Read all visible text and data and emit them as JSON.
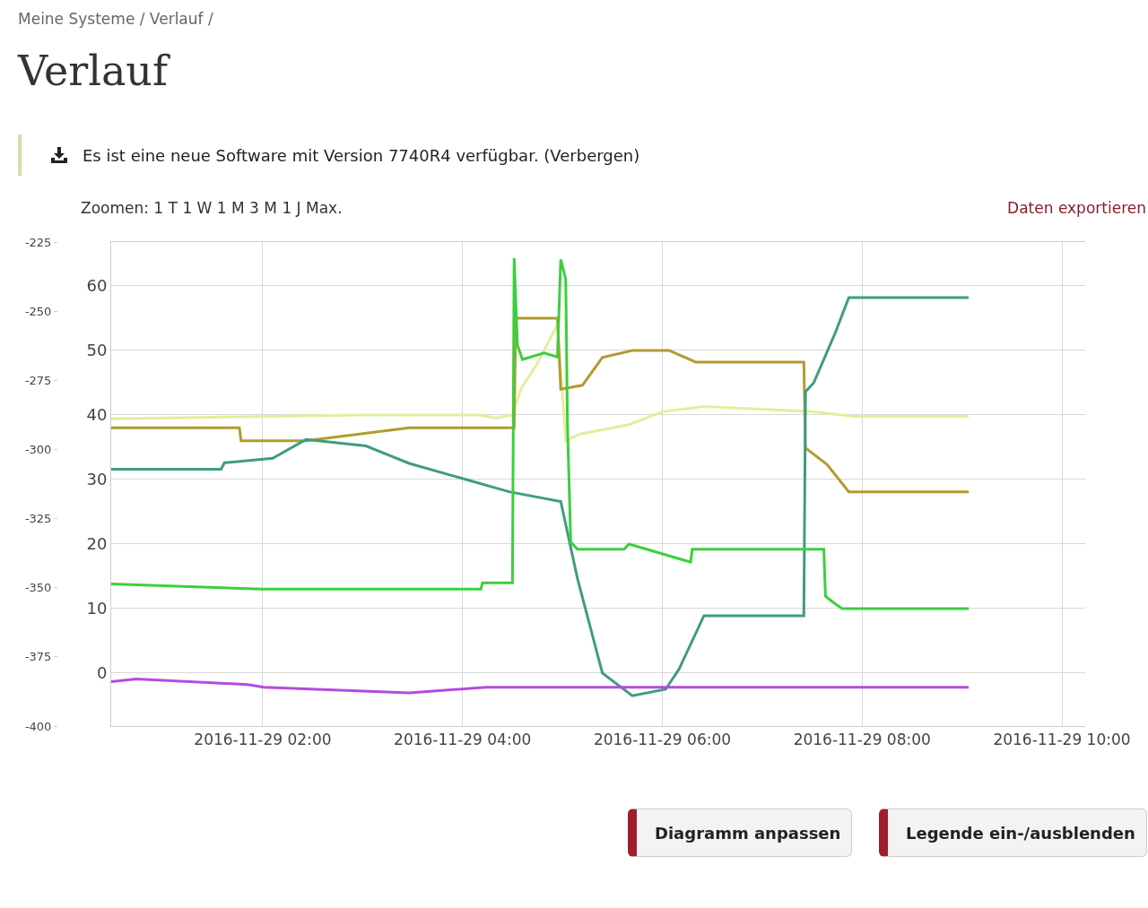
{
  "chart_data": {
    "type": "line",
    "title": "Verlauf",
    "subtitle": "Meine Systeme / Verlauf /",
    "annotations": [
      "Es ist eine neue Software mit Version 7740R4 verfügbar. (Verbergen)",
      "Zoomen: 1 T 1 W 1 M 3 M 1 J Max.",
      "Daten exportieren",
      "Diagramm anpassen",
      "Legende ein-/ausblenden"
    ],
    "xlim": [
      "2016-11-29T00:29",
      "2016-11-29T10:14"
    ],
    "xticks": [
      {
        "value": "2016-11-29T02:00",
        "label": "2016-11-29 02:00"
      },
      {
        "value": "2016-11-29T04:00",
        "label": "2016-11-29 04:00"
      },
      {
        "value": "2016-11-29T06:00",
        "label": "2016-11-29 06:00"
      },
      {
        "value": "2016-11-29T08:00",
        "label": "2016-11-29 08:00"
      },
      {
        "value": "2016-11-29T10:00",
        "label": "2016-11-29 10:00"
      }
    ],
    "ylim": [
      -8.2,
      66.8
    ],
    "yticks": [
      0,
      10,
      20,
      30,
      40,
      50,
      60
    ],
    "y2lim": [
      -400,
      -225
    ],
    "y2ticks": [
      -400,
      -375,
      -350,
      -325,
      -300,
      -275,
      -250,
      -225
    ],
    "grid": true,
    "marker": "none",
    "line_style": "solid",
    "series": [
      {
        "color": "#e3ee9e",
        "x": [
          "2016-11-29T00:29",
          "2016-11-29T03:00",
          "2016-11-29T04:10",
          "2016-11-29T04:20",
          "2016-11-29T04:30",
          "2016-11-29T04:35",
          "2016-11-29T04:45",
          "2016-11-29T04:57",
          "2016-11-29T05:02",
          "2016-11-29T05:10",
          "2016-11-29T05:40",
          "2016-11-29T06:00",
          "2016-11-29T06:25",
          "2016-11-29T07:30",
          "2016-11-29T07:55",
          "2016-11-29T09:04"
        ],
        "values": [
          39.4,
          40,
          40,
          39.5,
          40,
          44,
          48,
          54,
          36,
          37,
          38.5,
          40.5,
          41.3,
          40.5,
          39.8,
          39.8
        ]
      },
      {
        "color": "#b39a2e",
        "x": [
          "2016-11-29T00:29",
          "2016-11-29T01:46",
          "2016-11-29T01:47",
          "2016-11-29T02:26",
          "2016-11-29T03:28",
          "2016-11-29T04:31",
          "2016-11-29T04:32",
          "2016-11-29T04:57",
          "2016-11-29T04:59",
          "2016-11-29T05:12",
          "2016-11-29T05:24",
          "2016-11-29T05:42",
          "2016-11-29T06:04",
          "2016-11-29T06:20",
          "2016-11-29T07:25",
          "2016-11-29T07:26",
          "2016-11-29T07:39",
          "2016-11-29T07:52",
          "2016-11-29T09:04"
        ],
        "values": [
          38,
          38,
          36,
          36,
          38,
          38,
          55,
          55,
          44,
          44.6,
          48.9,
          50,
          50,
          48.2,
          48.2,
          34.9,
          32.3,
          28.1,
          28.1
        ]
      },
      {
        "color": "#3f9b85",
        "x": [
          "2016-11-29T00:29",
          "2016-11-29T01:35",
          "2016-11-29T01:37",
          "2016-11-29T02:06",
          "2016-11-29T02:26",
          "2016-11-29T03:02",
          "2016-11-29T03:28",
          "2016-11-29T04:28",
          "2016-11-29T04:59",
          "2016-11-29T05:09",
          "2016-11-29T05:24",
          "2016-11-29T05:42",
          "2016-11-29T06:02",
          "2016-11-29T06:10",
          "2016-11-29T06:25",
          "2016-11-29T07:25",
          "2016-11-29T07:26",
          "2016-11-29T07:31",
          "2016-11-29T07:44",
          "2016-11-29T07:52",
          "2016-11-29T09:04"
        ],
        "values": [
          31.6,
          31.6,
          32.6,
          33.3,
          36.2,
          35.2,
          32.5,
          28.1,
          26.6,
          14.7,
          0,
          -3.5,
          -2.5,
          0.6,
          8.9,
          8.9,
          43.6,
          45,
          52.8,
          58.2,
          58.2
        ]
      },
      {
        "color": "#3ccf3c",
        "x": [
          "2016-11-29T00:29",
          "2016-11-29T02:00",
          "2016-11-29T04:11",
          "2016-11-29T04:12",
          "2016-11-29T04:30",
          "2016-11-29T04:31",
          "2016-11-29T04:33",
          "2016-11-29T04:36",
          "2016-11-29T04:49",
          "2016-11-29T04:57",
          "2016-11-29T04:59",
          "2016-11-29T05:02",
          "2016-11-29T05:03",
          "2016-11-29T05:05",
          "2016-11-29T05:09",
          "2016-11-29T05:37",
          "2016-11-29T05:40",
          "2016-11-29T06:17",
          "2016-11-29T06:18",
          "2016-11-29T07:37",
          "2016-11-29T07:38",
          "2016-11-29T07:43",
          "2016-11-29T07:48",
          "2016-11-29T09:04"
        ],
        "values": [
          13.8,
          13,
          13,
          14,
          14,
          64.3,
          50.8,
          48.6,
          49.6,
          49,
          64.1,
          61,
          38.7,
          20.3,
          19.2,
          19.2,
          20,
          17.2,
          19.2,
          19.2,
          11.9,
          10.9,
          10,
          10
        ]
      },
      {
        "color": "#b44be0",
        "x": [
          "2016-11-29T00:29",
          "2016-11-29T00:44",
          "2016-11-29T01:51",
          "2016-11-29T02:01",
          "2016-11-29T03:28",
          "2016-11-29T04:14",
          "2016-11-29T09:04"
        ],
        "axis": "y2",
        "values": [
          -384,
          -383,
          -385,
          -386,
          -388,
          -386,
          -386
        ]
      }
    ]
  }
}
